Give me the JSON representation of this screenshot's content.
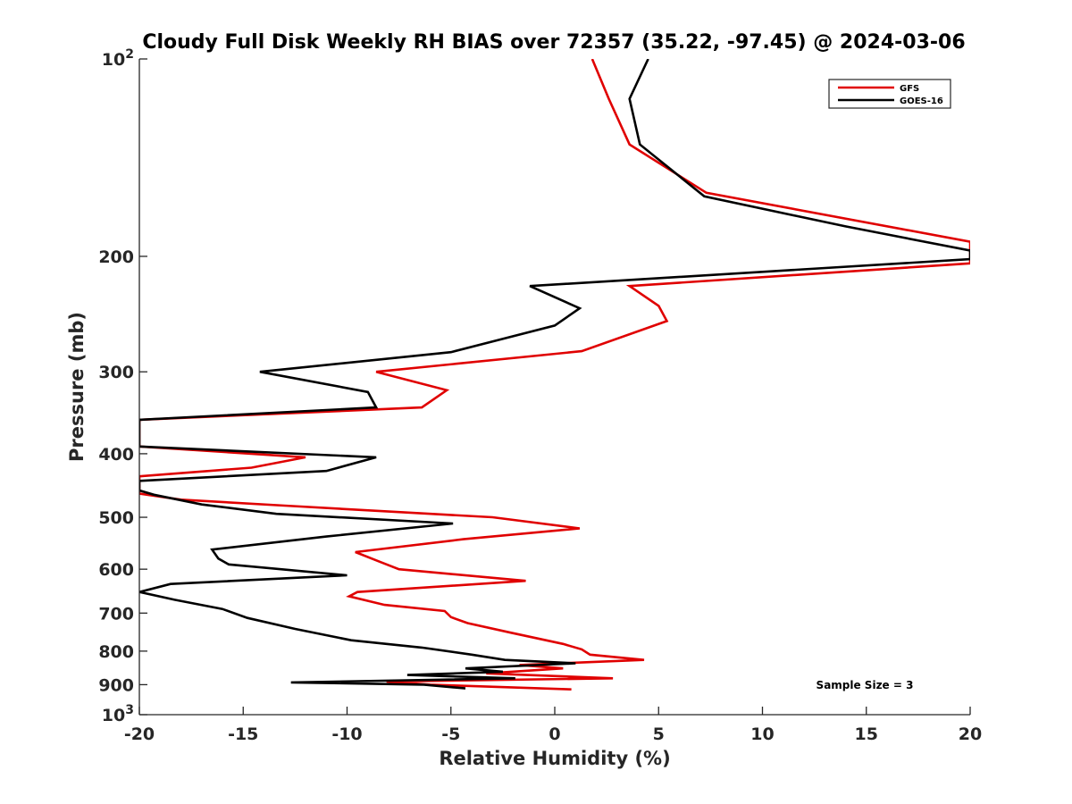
{
  "chart_data": {
    "type": "line",
    "title": "Cloudy Full Disk Weekly RH BIAS over 72357 (35.22, -97.45) @ 2024-03-06",
    "xlabel": "Relative Humidity (%)",
    "ylabel": "Pressure (mb)",
    "xlim": [
      -20,
      20
    ],
    "ylim": [
      100,
      1000
    ],
    "y_scale": "log",
    "y_reversed": true,
    "x_ticks": [
      "-20",
      "-15",
      "-10",
      "-5",
      "0",
      "5",
      "10",
      "15",
      "20"
    ],
    "y_ticks": [
      {
        "value": 100,
        "base": "10",
        "exp": "2"
      },
      {
        "value": 200,
        "label": "200"
      },
      {
        "value": 300,
        "label": "300"
      },
      {
        "value": 400,
        "label": "400"
      },
      {
        "value": 500,
        "label": "500"
      },
      {
        "value": 600,
        "label": "600"
      },
      {
        "value": 700,
        "label": "700"
      },
      {
        "value": 800,
        "label": "800"
      },
      {
        "value": 900,
        "label": "900"
      },
      {
        "value": 1000,
        "base": "10",
        "exp": "3"
      }
    ],
    "grid": false,
    "legend_position": "top-right",
    "annotation": "Sample Size = 3",
    "series": [
      {
        "name": "GFS",
        "color": "#e00000",
        "points": [
          [
            1.8,
            100
          ],
          [
            2.6,
            115
          ],
          [
            3.6,
            135
          ],
          [
            7.3,
            160
          ],
          [
            20.0,
            190
          ],
          [
            20.0,
            205
          ],
          [
            3.6,
            222
          ],
          [
            5.0,
            238
          ],
          [
            5.4,
            251
          ],
          [
            1.3,
            279
          ],
          [
            -8.6,
            300
          ],
          [
            -5.2,
            320
          ],
          [
            -6.4,
            340
          ],
          [
            -20.0,
            355
          ],
          [
            -20.0,
            390
          ],
          [
            -12.0,
            405
          ],
          [
            -14.6,
            420
          ],
          [
            -20.0,
            433
          ],
          [
            -20.0,
            460
          ],
          [
            -18.0,
            470
          ],
          [
            -13.0,
            480
          ],
          [
            -8.0,
            490
          ],
          [
            -3.0,
            500
          ],
          [
            1.2,
            520
          ],
          [
            -4.4,
            540
          ],
          [
            -9.6,
            565
          ],
          [
            -8.4,
            585
          ],
          [
            -7.5,
            600
          ],
          [
            -1.4,
            625
          ],
          [
            -9.5,
            650
          ],
          [
            -9.9,
            660
          ],
          [
            -8.2,
            680
          ],
          [
            -5.3,
            695
          ],
          [
            -5.0,
            710
          ],
          [
            -4.2,
            725
          ],
          [
            -2.1,
            750
          ],
          [
            0.4,
            780
          ],
          [
            1.3,
            795
          ],
          [
            1.7,
            810
          ],
          [
            4.3,
            825
          ],
          [
            -1.7,
            840
          ],
          [
            0.4,
            850
          ],
          [
            -3.3,
            865
          ],
          [
            2.8,
            880
          ],
          [
            -8.1,
            890
          ],
          [
            -6.0,
            900
          ],
          [
            0.8,
            915
          ]
        ]
      },
      {
        "name": "GOES-16",
        "color": "#000000",
        "points": [
          [
            4.5,
            100
          ],
          [
            3.6,
            115
          ],
          [
            4.1,
            135
          ],
          [
            7.2,
            162
          ],
          [
            14.0,
            180
          ],
          [
            20.0,
            196
          ],
          [
            20.0,
            202
          ],
          [
            -1.2,
            222
          ],
          [
            1.2,
            240
          ],
          [
            0.0,
            255
          ],
          [
            -5.0,
            280
          ],
          [
            -14.2,
            300
          ],
          [
            -9.0,
            322
          ],
          [
            -8.6,
            340
          ],
          [
            -20.0,
            355
          ],
          [
            -20.0,
            390
          ],
          [
            -8.6,
            405
          ],
          [
            -11.0,
            425
          ],
          [
            -20.0,
            440
          ],
          [
            -20.0,
            455
          ],
          [
            -19.3,
            462
          ],
          [
            -17.0,
            478
          ],
          [
            -13.4,
            494
          ],
          [
            -4.9,
            511
          ],
          [
            -11.0,
            535
          ],
          [
            -16.5,
            560
          ],
          [
            -16.2,
            578
          ],
          [
            -15.7,
            590
          ],
          [
            -10.0,
            613
          ],
          [
            -18.5,
            632
          ],
          [
            -20.0,
            650
          ],
          [
            -18.3,
            668
          ],
          [
            -16.0,
            690
          ],
          [
            -14.8,
            712
          ],
          [
            -12.5,
            740
          ],
          [
            -9.8,
            770
          ],
          [
            -6.4,
            790
          ],
          [
            -4.0,
            810
          ],
          [
            -2.4,
            825
          ],
          [
            1.0,
            835
          ],
          [
            -4.3,
            850
          ],
          [
            -2.5,
            860
          ],
          [
            -7.1,
            870
          ],
          [
            -1.9,
            880
          ],
          [
            -12.7,
            893
          ],
          [
            -6.3,
            900
          ],
          [
            -4.3,
            912
          ]
        ]
      }
    ]
  }
}
